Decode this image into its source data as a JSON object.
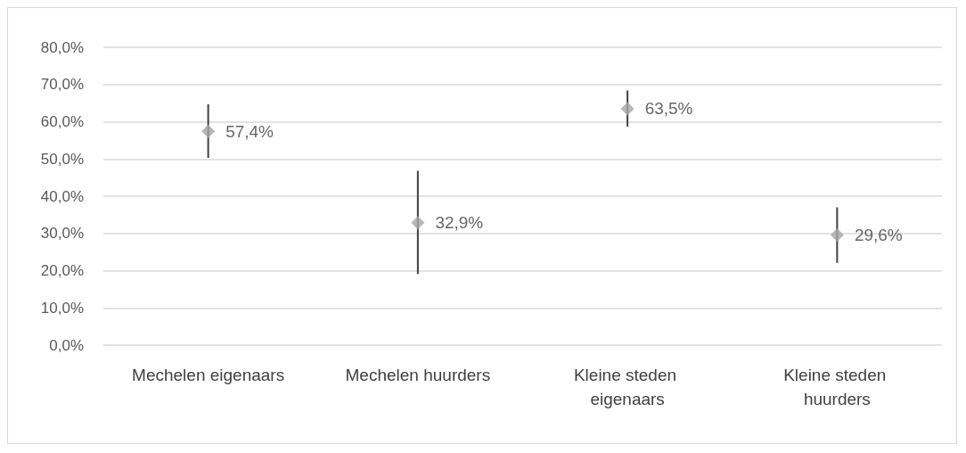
{
  "chart_data": {
    "type": "scatter",
    "categories": [
      "Mechelen eigenaars",
      "Mechelen huurders",
      "Kleine steden eigenaars",
      "Kleine steden huurders"
    ],
    "values": [
      57.4,
      32.9,
      63.5,
      29.6
    ],
    "value_labels": [
      "57,4%",
      "32,9%",
      "63,5%",
      "29,6%"
    ],
    "errors": [
      [
        50.3,
        64.7
      ],
      [
        19.1,
        46.8
      ],
      [
        58.7,
        68.4
      ],
      [
        22.1,
        37.0
      ]
    ],
    "color": "#a5a5a5",
    "marker": "diamond",
    "ylim": [
      0,
      80
    ],
    "yticks": [
      {
        "value": 0,
        "label": "0,0%"
      },
      {
        "value": 10,
        "label": "10,0%"
      },
      {
        "value": 20,
        "label": "20,0%"
      },
      {
        "value": 30,
        "label": "30,0%"
      },
      {
        "value": 40,
        "label": "40,0%"
      },
      {
        "value": 50,
        "label": "50,0%"
      },
      {
        "value": 60,
        "label": "60,0%"
      },
      {
        "value": 70,
        "label": "70,0%"
      },
      {
        "value": 80,
        "label": "80,0%"
      }
    ],
    "grid": "y"
  }
}
